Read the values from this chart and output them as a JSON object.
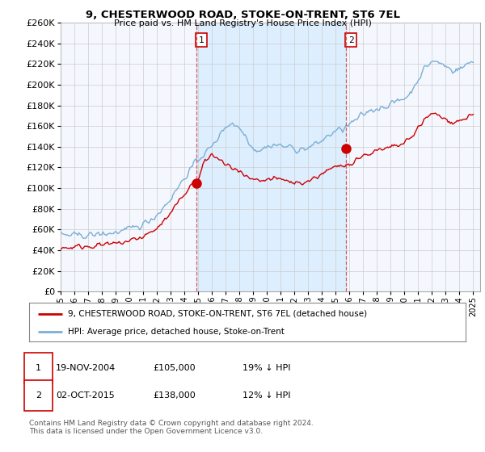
{
  "title": "9, CHESTERWOOD ROAD, STOKE-ON-TRENT, ST6 7EL",
  "subtitle": "Price paid vs. HM Land Registry's House Price Index (HPI)",
  "legend_line1": "9, CHESTERWOOD ROAD, STOKE-ON-TRENT, ST6 7EL (detached house)",
  "legend_line2": "HPI: Average price, detached house, Stoke-on-Trent",
  "annotation1_label": "1",
  "annotation1_date": "19-NOV-2004",
  "annotation1_price": "£105,000",
  "annotation1_hpi": "19% ↓ HPI",
  "annotation2_label": "2",
  "annotation2_date": "02-OCT-2015",
  "annotation2_price": "£138,000",
  "annotation2_hpi": "12% ↓ HPI",
  "footer": "Contains HM Land Registry data © Crown copyright and database right 2024.\nThis data is licensed under the Open Government Licence v3.0.",
  "ylim": [
    0,
    260000
  ],
  "yticks": [
    0,
    20000,
    40000,
    60000,
    80000,
    100000,
    120000,
    140000,
    160000,
    180000,
    200000,
    220000,
    240000,
    260000
  ],
  "xlim_start": 1995.0,
  "xlim_end": 2025.5,
  "xticks": [
    1995,
    1996,
    1997,
    1998,
    1999,
    2000,
    2001,
    2002,
    2003,
    2004,
    2005,
    2006,
    2007,
    2008,
    2009,
    2010,
    2011,
    2012,
    2013,
    2014,
    2015,
    2016,
    2017,
    2018,
    2019,
    2020,
    2021,
    2022,
    2023,
    2024,
    2025
  ],
  "marker1_x": 2004.88,
  "marker1_y": 105000,
  "marker2_x": 2015.75,
  "marker2_y": 138000,
  "red_color": "#cc0000",
  "blue_color": "#7aafd4",
  "shade_color": "#ddeeff",
  "background_plot": "#f5f7ff",
  "grid_color": "#cccccc",
  "vline_color": "#cc4444"
}
